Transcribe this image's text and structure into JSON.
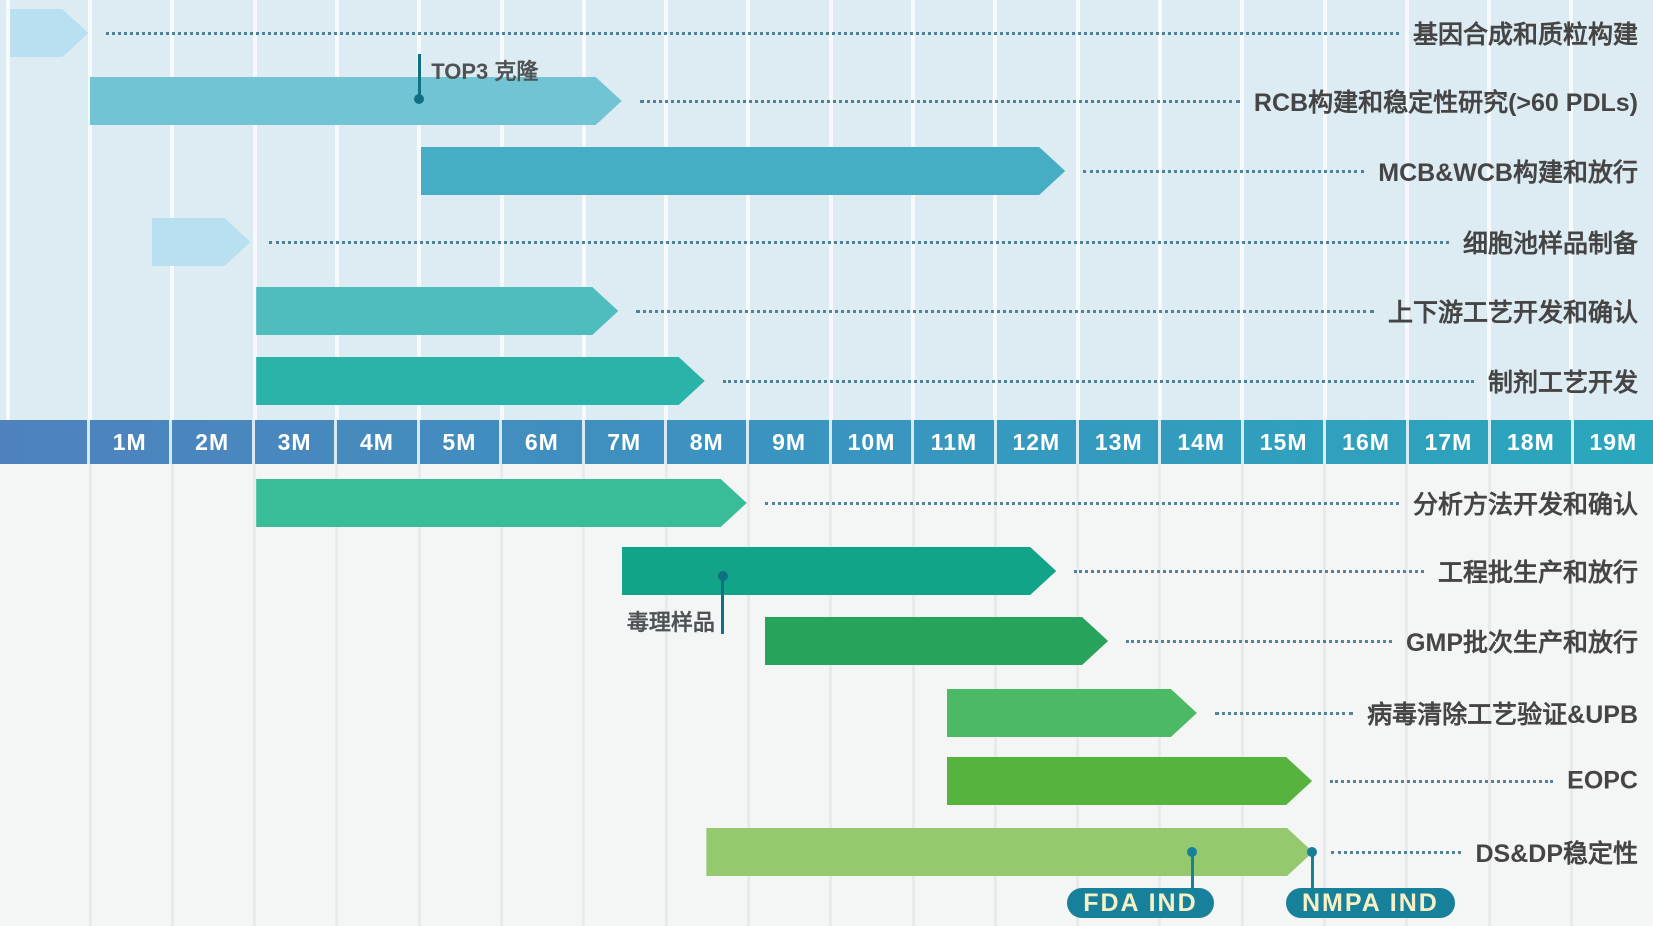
{
  "chart_data": {
    "type": "bar",
    "orientation": "horizontal-gantt",
    "title": "",
    "x_axis": {
      "unit": "month",
      "labels": [
        "1M",
        "2M",
        "3M",
        "4M",
        "5M",
        "6M",
        "7M",
        "8M",
        "9M",
        "10M",
        "11M",
        "12M",
        "13M",
        "14M",
        "15M",
        "16M",
        "17M",
        "18M",
        "19M"
      ],
      "range": [
        -1,
        19
      ],
      "grid": true
    },
    "sections": [
      {
        "name": "upstream",
        "bg": "#ddecf2",
        "gridline_color": "rgba(255,255,255,0.75)",
        "tasks": [
          {
            "label": "基因合成和质粒构建",
            "start": -0.97,
            "end": -0.02,
            "color": "#b9e0f1"
          },
          {
            "label": "RCB构建和稳定性研究(>60 PDLs)",
            "start": 0.0,
            "end": 6.46,
            "color": "#72c3d3"
          },
          {
            "label": "MCB&WCB构建和放行",
            "start": 4.02,
            "end": 11.85,
            "color": "#46adc4"
          },
          {
            "label": "细胞池样品制备",
            "start": 0.75,
            "end": 1.95,
            "color": "#b9e0f1"
          },
          {
            "label": "上下游工艺开发和确认",
            "start": 2.02,
            "end": 6.42,
            "color": "#4fbcbd"
          },
          {
            "label": "制剂工艺开发",
            "start": 2.02,
            "end": 7.47,
            "color": "#29b3a9"
          }
        ]
      },
      {
        "name": "downstream",
        "bg": "#f4f5f5",
        "gridline_color": "#e9eaeb",
        "tasks": [
          {
            "label": "分析方法开发和确认",
            "start": 2.02,
            "end": 7.98,
            "color": "#38bd98"
          },
          {
            "label": "工程批生产和放行",
            "start": 6.46,
            "end": 11.74,
            "color": "#12a488"
          },
          {
            "label": "GMP批次生产和放行",
            "start": 8.2,
            "end": 12.37,
            "color": "#28a35b"
          },
          {
            "label": "病毒清除工艺验证&UPB",
            "start": 10.41,
            "end": 13.45,
            "color": "#4cb964"
          },
          {
            "label": "EOPC",
            "start": 10.41,
            "end": 14.85,
            "color": "#56b33e"
          },
          {
            "label": "DS&DP稳定性",
            "start": 7.49,
            "end": 14.86,
            "color": "#94c96d"
          }
        ]
      }
    ],
    "milestones": [
      {
        "id": "top3",
        "label": "TOP3 克隆",
        "month": 4.0,
        "task": "RCB构建和稳定性研究(>60 PDLs)"
      },
      {
        "id": "toxicology",
        "label": "毒理样品",
        "month": 7.69,
        "task": "工程批生产和放行"
      },
      {
        "id": "fda",
        "label": "FDA IND",
        "month": 13.39,
        "task": "DS&DP稳定性"
      },
      {
        "id": "nmpa",
        "label": "NMPA IND",
        "month": 14.85,
        "task": "DS&DP稳定性"
      }
    ],
    "legend": null
  },
  "styles": {
    "axis_gradient_left": "#4f82bd",
    "axis_gradient_mid": "#3a94c0",
    "axis_gradient_right": "#2aa7bc",
    "axis_text_color": "#ffffff",
    "task_label_color": "#454545",
    "leader_dot_color": "#37708a",
    "marker_color": "#0f7085",
    "badge_bg": "#17809b",
    "badge_text_color": "#f6f1c5",
    "top_bg": "#ddecf2",
    "bottom_bg": "#f4f5f5"
  }
}
